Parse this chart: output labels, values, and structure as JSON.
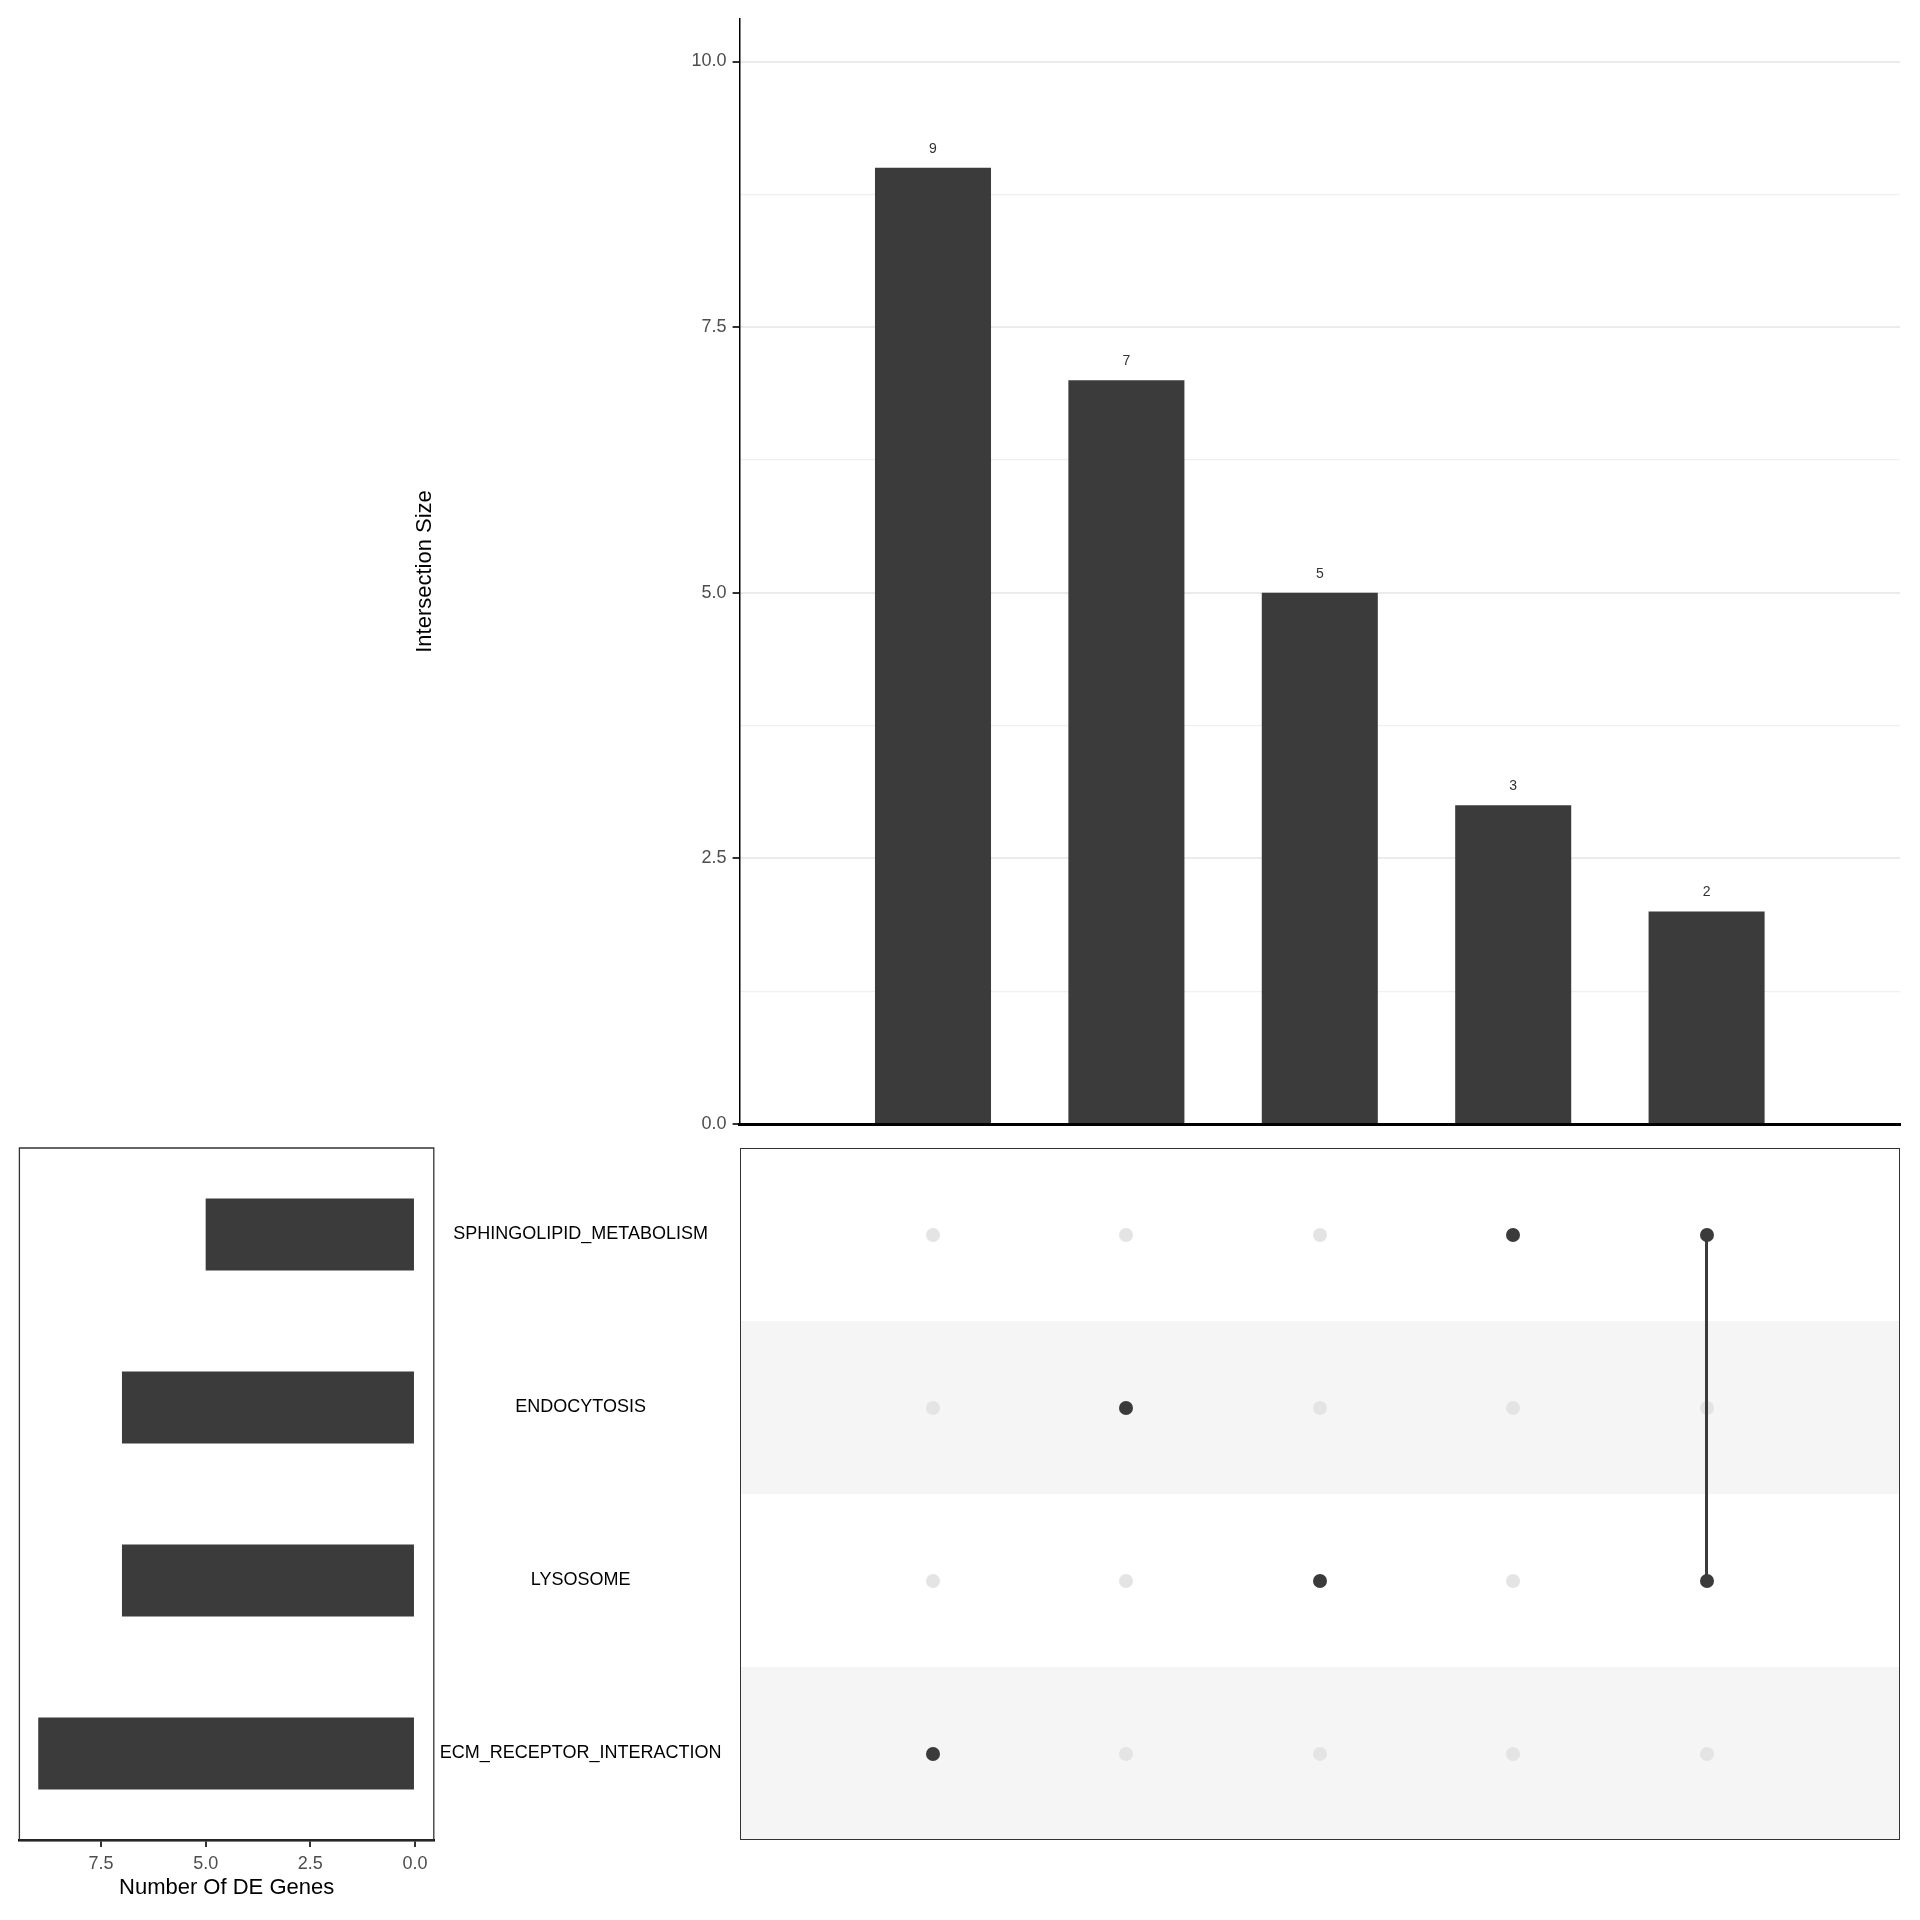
{
  "chart_data": [
    {
      "type": "bar",
      "ylabel": "Intersection Size",
      "categories": [
        null,
        null,
        null,
        null,
        null
      ],
      "values": [
        9,
        7,
        5,
        3,
        2
      ],
      "color": "#3b3b3b",
      "ylim": [
        0,
        10.4
      ],
      "yticks": [
        {
          "value": 0,
          "label": "0.0"
        },
        {
          "value": 1.25,
          "label": null
        },
        2.5,
        {
          "value": 3.75,
          "label": null
        },
        {
          "value": 5,
          "label": "5.0"
        },
        {
          "value": 6.25,
          "label": null
        },
        7.5,
        {
          "value": 8.75,
          "label": null
        },
        {
          "value": 10,
          "label": "10.0"
        }
      ],
      "grid": "y",
      "data_labels": true,
      "tick_labels": "y"
    },
    {
      "type": "bar",
      "orientation": "horizontal",
      "xlabel": "Number Of DE Genes",
      "categories": [
        "SPHINGOLIPID_METABOLISM",
        "ENDOCYTOSIS",
        "LYSOSOME",
        "ECM_RECEPTOR_INTERACTION"
      ],
      "values": [
        5,
        7,
        7,
        9
      ],
      "color": "#3b3b3b",
      "xlim": [
        9.45,
        -0.45
      ],
      "xticks": [
        7.5,
        {
          "value": 5,
          "label": "5.0"
        },
        2.5,
        {
          "value": 0,
          "label": "0.0"
        }
      ]
    },
    {
      "type": "other",
      "categories": [
        null,
        null,
        null,
        null,
        null
      ],
      "color": "#3b3b3b",
      "cells": [
        [
          false,
          false,
          false,
          true,
          true
        ],
        [
          false,
          true,
          false,
          false,
          false
        ],
        [
          false,
          false,
          true,
          false,
          true
        ],
        [
          true,
          false,
          false,
          false,
          false
        ]
      ]
    }
  ]
}
